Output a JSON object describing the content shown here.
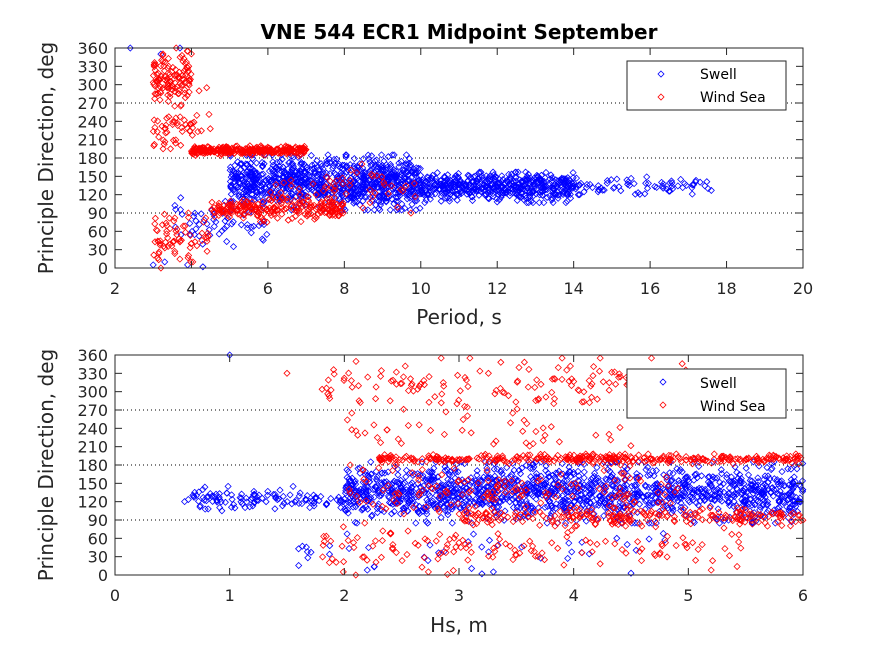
{
  "chart_data": [
    {
      "type": "scatter",
      "title": "VNE 544 ECR1 Midpoint September",
      "xlabel": "Period, s",
      "ylabel": "Principle Direction, deg",
      "xlim": [
        2,
        20
      ],
      "ylim": [
        0,
        360
      ],
      "xticks": [
        "2",
        "4",
        "6",
        "8",
        "10",
        "12",
        "14",
        "16",
        "18",
        "20"
      ],
      "yticks": [
        "0",
        "30",
        "60",
        "90",
        "120",
        "150",
        "180",
        "210",
        "240",
        "270",
        "300",
        "330",
        "360"
      ],
      "ygrid_dotted": [
        90,
        180,
        270
      ],
      "legend": {
        "placement": "top-right",
        "entries": [
          "Swell",
          "Wind Sea"
        ]
      },
      "series": [
        {
          "name": "Swell",
          "color": "#0000ff",
          "marker": "diamond",
          "clusters": [
            {
              "x_range": [
                5,
                10
              ],
              "y_center": 140,
              "y_spread": 45,
              "count": 900
            },
            {
              "x_range": [
                10,
                14
              ],
              "y_center": 132,
              "y_spread": 25,
              "count": 500
            },
            {
              "x_range": [
                14,
                17.6
              ],
              "y_center": 135,
              "y_spread": 15,
              "count": 70
            },
            {
              "x_range": [
                3.5,
                6
              ],
              "y_center": 75,
              "y_spread": 40,
              "count": 60
            }
          ],
          "points": [
            [
              2.4,
              360
            ],
            [
              3.2,
              350
            ],
            [
              3.7,
              360
            ],
            [
              3,
              5
            ],
            [
              3.3,
              10
            ],
            [
              3.9,
              5
            ],
            [
              4.3,
              2
            ],
            [
              17.6,
              127
            ],
            [
              16.3,
              140
            ],
            [
              16.8,
              145
            ]
          ]
        },
        {
          "name": "Wind Sea",
          "color": "#ff0000",
          "marker": "diamond",
          "clusters": [
            {
              "x_range": [
                3,
                4
              ],
              "y_center": 310,
              "y_spread": 45,
              "count": 120
            },
            {
              "x_range": [
                4,
                7
              ],
              "y_center": 192,
              "y_spread": 8,
              "count": 300
            },
            {
              "x_range": [
                4.5,
                8
              ],
              "y_center": 95,
              "y_spread": 20,
              "count": 220
            },
            {
              "x_range": [
                3,
                4.5
              ],
              "y_center": 50,
              "y_spread": 40,
              "count": 70
            },
            {
              "x_range": [
                3,
                4.5
              ],
              "y_center": 230,
              "y_spread": 35,
              "count": 50
            },
            {
              "x_range": [
                6,
                10
              ],
              "y_center": 130,
              "y_spread": 40,
              "count": 60
            }
          ],
          "points": [
            [
              3.2,
              0
            ],
            [
              3.6,
              360
            ],
            [
              4.2,
              290
            ],
            [
              4.4,
              295
            ]
          ]
        }
      ]
    },
    {
      "type": "scatter",
      "title": "",
      "xlabel": "Hs, m",
      "ylabel": "Principle Direction, deg",
      "xlim": [
        0,
        6
      ],
      "ylim": [
        0,
        360
      ],
      "xticks": [
        "0",
        "1",
        "2",
        "3",
        "4",
        "5",
        "6"
      ],
      "yticks": [
        "0",
        "30",
        "60",
        "90",
        "120",
        "150",
        "180",
        "210",
        "240",
        "270",
        "300",
        "330",
        "360"
      ],
      "ygrid_dotted": [
        90,
        180,
        270
      ],
      "legend": {
        "placement": "top-right",
        "entries": [
          "Swell",
          "Wind Sea"
        ]
      },
      "series": [
        {
          "name": "Swell",
          "color": "#0000ff",
          "marker": "diamond",
          "clusters": [
            {
              "x_range": [
                0.6,
                2
              ],
              "y_center": 125,
              "y_spread": 20,
              "count": 120
            },
            {
              "x_range": [
                2,
                6
              ],
              "y_center": 135,
              "y_spread": 50,
              "count": 1400
            },
            {
              "x_range": [
                1.5,
                5
              ],
              "y_center": 40,
              "y_spread": 40,
              "count": 40
            }
          ],
          "points": [
            [
              1.0,
              360
            ],
            [
              2.2,
              8
            ],
            [
              3.2,
              2
            ],
            [
              3.3,
              5
            ],
            [
              4.5,
              3
            ]
          ]
        },
        {
          "name": "Wind Sea",
          "color": "#ff0000",
          "marker": "diamond",
          "clusters": [
            {
              "x_range": [
                2.3,
                6
              ],
              "y_center": 190,
              "y_spread": 8,
              "count": 350
            },
            {
              "x_range": [
                3,
                6
              ],
              "y_center": 95,
              "y_spread": 15,
              "count": 220
            },
            {
              "x_range": [
                1.8,
                5
              ],
              "y_center": 310,
              "y_spread": 45,
              "count": 160
            },
            {
              "x_range": [
                1.8,
                5.5
              ],
              "y_center": 45,
              "y_spread": 40,
              "count": 140
            },
            {
              "x_range": [
                2,
                5
              ],
              "y_center": 140,
              "y_spread": 40,
              "count": 140
            },
            {
              "x_range": [
                2,
                4.5
              ],
              "y_center": 230,
              "y_spread": 35,
              "count": 40
            }
          ],
          "points": [
            [
              2.1,
              0
            ],
            [
              1.5,
              330
            ],
            [
              2.0,
              322
            ],
            [
              2.9,
              1
            ]
          ]
        }
      ]
    }
  ]
}
